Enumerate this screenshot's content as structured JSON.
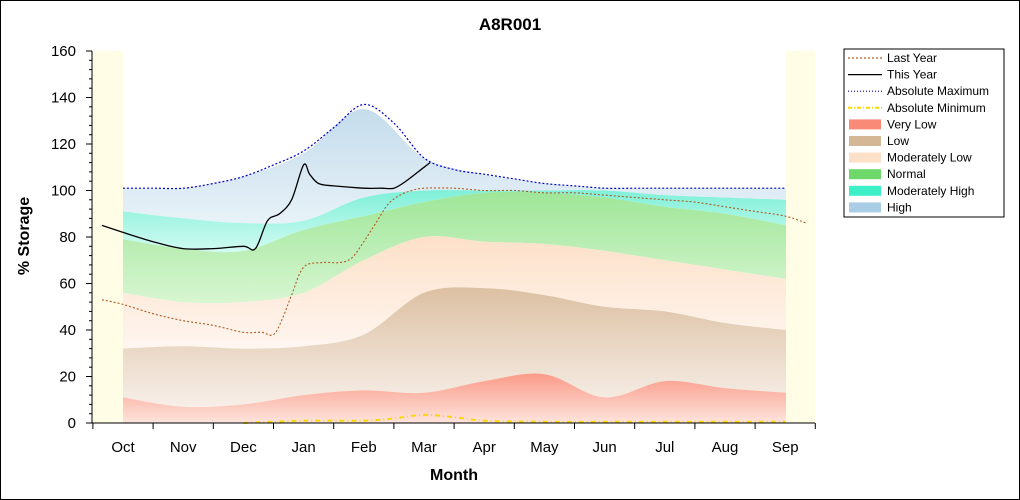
{
  "chart_data": {
    "type": "area",
    "title": "A8R001",
    "xlabel": "Month",
    "ylabel": "% Storage",
    "ylim": [
      0,
      160
    ],
    "yticks": [
      0,
      20,
      40,
      60,
      80,
      100,
      120,
      140,
      160
    ],
    "categories": [
      "Oct",
      "Nov",
      "Dec",
      "Jan",
      "Feb",
      "Mar",
      "Apr",
      "May",
      "Jun",
      "Jul",
      "Aug",
      "Sep"
    ],
    "grid": false,
    "legend_position": "right",
    "colors": {
      "plot_background": "#fffde6",
      "band_background": "#ffffff",
      "high": "#cfe3ee",
      "moderately_high": "#8ff0dc",
      "normal": "#a8eaa0",
      "moderately_low": "#fde3cf",
      "low": "#e6cdb3",
      "very_low": "#fbb6a5",
      "last_year": "#b05a20",
      "this_year": "#000000",
      "absolute_maximum": "#0000cc",
      "absolute_minimum": "#ffd700"
    },
    "legend": [
      {
        "name": "Last Year",
        "style": "line-dashed",
        "color": "#b05a20"
      },
      {
        "name": "This Year",
        "style": "line",
        "color": "#000000"
      },
      {
        "name": "Absolute Maximum",
        "style": "line-dotted",
        "color": "#0000cc"
      },
      {
        "name": "Absolute Minimum",
        "style": "line-dashdot",
        "color": "#ffd700"
      },
      {
        "name": "Very Low",
        "style": "area",
        "color": "#fa8a78"
      },
      {
        "name": "Low",
        "style": "area",
        "color": "#d4b896"
      },
      {
        "name": "Moderately Low",
        "style": "area",
        "color": "#fde0c8"
      },
      {
        "name": "Normal",
        "style": "area",
        "color": "#6ed86a"
      },
      {
        "name": "Moderately High",
        "style": "area",
        "color": "#3ef0c8"
      },
      {
        "name": "High",
        "style": "area",
        "color": "#a8cde4"
      }
    ],
    "bands_x": [
      0,
      1,
      2,
      3,
      4,
      5,
      6,
      7,
      8,
      9,
      10,
      11
    ],
    "bands": {
      "very_low_top": [
        11,
        7,
        8,
        12,
        14,
        13,
        18,
        21,
        11,
        18,
        15,
        13
      ],
      "low_top": [
        32,
        33,
        32,
        33,
        38,
        56,
        58,
        55,
        50,
        48,
        43,
        40
      ],
      "moderately_low_top": [
        56,
        52,
        52,
        56,
        70,
        80,
        78,
        77,
        74,
        70,
        66,
        62
      ],
      "normal_top": [
        79,
        75,
        74,
        83,
        89,
        95,
        99,
        99,
        97,
        93,
        90,
        85
      ],
      "moderately_high_top": [
        91,
        88,
        86,
        87,
        97,
        100,
        100,
        100,
        100,
        98,
        97,
        96
      ],
      "high_top": [
        101,
        101,
        106,
        116,
        135,
        114,
        107,
        103,
        101,
        101,
        101,
        101
      ]
    },
    "series": [
      {
        "name": "Absolute Maximum",
        "x": [
          0,
          0.5,
          1,
          1.5,
          2,
          2.5,
          3,
          3.5,
          4,
          4.5,
          5,
          5.5,
          6,
          6.5,
          7,
          7.5,
          8,
          8.5,
          9,
          9.5,
          10,
          10.5,
          11
        ],
        "values": [
          101,
          101,
          101,
          103,
          106,
          111,
          117,
          127,
          137,
          129,
          114,
          109,
          107,
          105,
          103,
          102,
          101,
          101,
          101,
          101,
          101,
          101,
          101
        ]
      },
      {
        "name": "Absolute Minimum",
        "x": [
          2,
          3,
          4,
          4.5,
          5,
          5.5,
          6,
          7,
          8,
          9,
          10,
          11
        ],
        "values": [
          0,
          1,
          1,
          2,
          3.5,
          2.5,
          1,
          0.5,
          0.5,
          0.5,
          0.5,
          0.5
        ]
      },
      {
        "name": "This Year",
        "x": [
          -0.35,
          0,
          0.5,
          1,
          1.5,
          2,
          2.2,
          2.4,
          2.6,
          2.8,
          3,
          3.1,
          3.25,
          3.5,
          4,
          4.3,
          4.5,
          4.7,
          5,
          5.1
        ],
        "values": [
          85,
          82,
          78,
          75,
          75,
          76,
          75,
          87,
          90,
          96,
          111,
          107,
          103,
          102,
          101,
          101,
          101,
          104,
          110,
          112
        ]
      },
      {
        "name": "Last Year",
        "x": [
          -0.35,
          0,
          0.5,
          1,
          1.5,
          2,
          2.3,
          2.5,
          2.65,
          2.8,
          3,
          3.3,
          3.6,
          3.8,
          4,
          4.2,
          4.4,
          4.6,
          4.8,
          5,
          5.5,
          6,
          6.5,
          7,
          7.5,
          8,
          8.5,
          9,
          9.5,
          10,
          10.5,
          11,
          11.35
        ],
        "values": [
          53,
          51,
          47,
          44,
          42,
          39,
          39,
          38,
          45,
          55,
          67,
          69,
          69,
          71,
          78,
          86,
          94,
          98,
          100,
          101,
          101,
          100,
          100,
          99,
          99,
          98,
          97,
          96,
          95,
          93,
          91,
          89,
          86
        ]
      }
    ]
  }
}
